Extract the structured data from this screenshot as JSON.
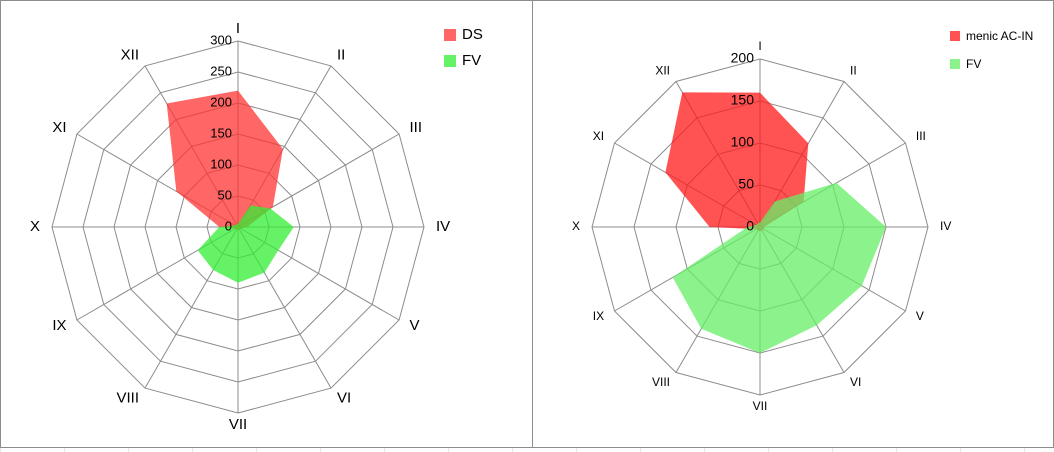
{
  "chart_data": [
    {
      "type": "radar",
      "title": "",
      "categories": [
        "I",
        "II",
        "III",
        "IV",
        "V",
        "VI",
        "VII",
        "VIII",
        "IX",
        "X",
        "XI",
        "XII"
      ],
      "rlim": [
        0,
        300
      ],
      "ticks": [
        "0",
        "50",
        "100",
        "150",
        "200",
        "250",
        "300"
      ],
      "series": [
        {
          "name": "DS",
          "color": "#ff3333",
          "values": [
            220,
            145,
            65,
            15,
            5,
            5,
            5,
            5,
            5,
            30,
            115,
            230
          ]
        },
        {
          "name": "FV",
          "color": "#33ee33",
          "values": [
            5,
            40,
            60,
            90,
            75,
            85,
            90,
            80,
            75,
            30,
            5,
            5
          ]
        }
      ],
      "legend": "top-right"
    },
    {
      "type": "radar",
      "title": "",
      "categories": [
        "I",
        "II",
        "III",
        "IV",
        "V",
        "VI",
        "VII",
        "VIII",
        "IX",
        "X",
        "XI",
        "XII"
      ],
      "rlim": [
        0,
        200
      ],
      "ticks": [
        "0",
        "50",
        "100",
        "150",
        "200"
      ],
      "series": [
        {
          "name": "menic AC-IN",
          "color": "#ff1a1a",
          "values": [
            160,
            115,
            60,
            5,
            5,
            5,
            5,
            5,
            5,
            60,
            130,
            185
          ]
        },
        {
          "name": "FV",
          "color": "#66ee66",
          "values": [
            5,
            35,
            105,
            150,
            140,
            135,
            150,
            140,
            120,
            15,
            5,
            5
          ]
        }
      ],
      "legend": "top-right"
    }
  ]
}
